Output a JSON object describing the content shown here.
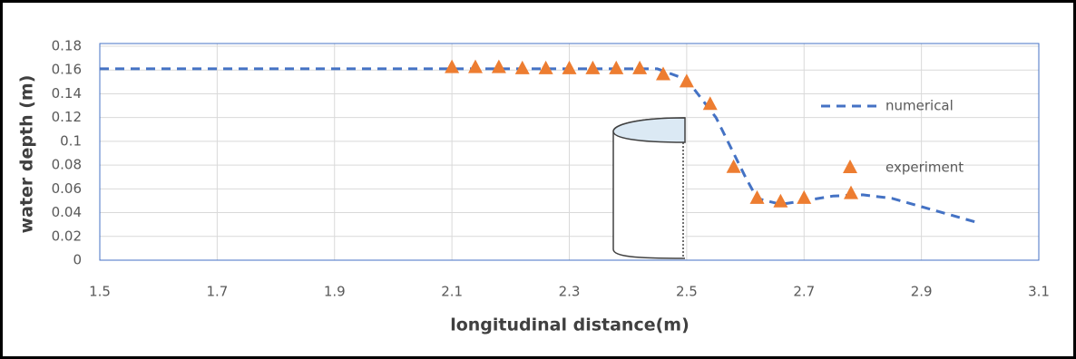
{
  "chart_data": {
    "type": "line-scatter",
    "xlabel": "longitudinal distance(m)",
    "ylabel": "water depth (m)",
    "xlim": [
      1.5,
      3.1
    ],
    "xticks": [
      1.5,
      1.7,
      1.9,
      2.1,
      2.3,
      2.5,
      2.7,
      2.9,
      3.1
    ],
    "ylim": [
      0,
      0.18
    ],
    "yticks": [
      0,
      0.02,
      0.04,
      0.06,
      0.08,
      0.1,
      0.12,
      0.14,
      0.16,
      0.18
    ],
    "grid": true,
    "series": [
      {
        "name": "numerical",
        "color": "#4472c4",
        "style": "dashed",
        "x": [
          1.5,
          2.45,
          2.5,
          2.55,
          2.6,
          2.62,
          2.66,
          2.7,
          2.75,
          2.8,
          2.85,
          2.9,
          2.95,
          3.0
        ],
        "values": [
          0.161,
          0.161,
          0.152,
          0.12,
          0.07,
          0.052,
          0.047,
          0.05,
          0.054,
          0.055,
          0.052,
          0.045,
          0.038,
          0.031
        ]
      },
      {
        "name": "experiment",
        "color": "#ed7d31",
        "style": "triangle",
        "x": [
          2.1,
          2.14,
          2.18,
          2.22,
          2.26,
          2.3,
          2.34,
          2.38,
          2.42,
          2.46,
          2.5,
          2.54,
          2.58,
          2.62,
          2.66,
          2.7,
          2.78
        ],
        "values": [
          0.162,
          0.162,
          0.162,
          0.161,
          0.161,
          0.161,
          0.161,
          0.161,
          0.161,
          0.156,
          0.15,
          0.131,
          0.078,
          0.052,
          0.049,
          0.052,
          0.056
        ]
      }
    ]
  }
}
